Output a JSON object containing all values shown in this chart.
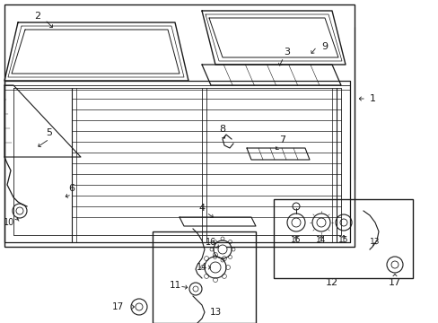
{
  "bg_color": "#ffffff",
  "line_color": "#1a1a1a",
  "fig_width": 4.89,
  "fig_height": 3.6,
  "dpi": 100,
  "text_color": "#1a1a1a",
  "font_size": 7.5
}
